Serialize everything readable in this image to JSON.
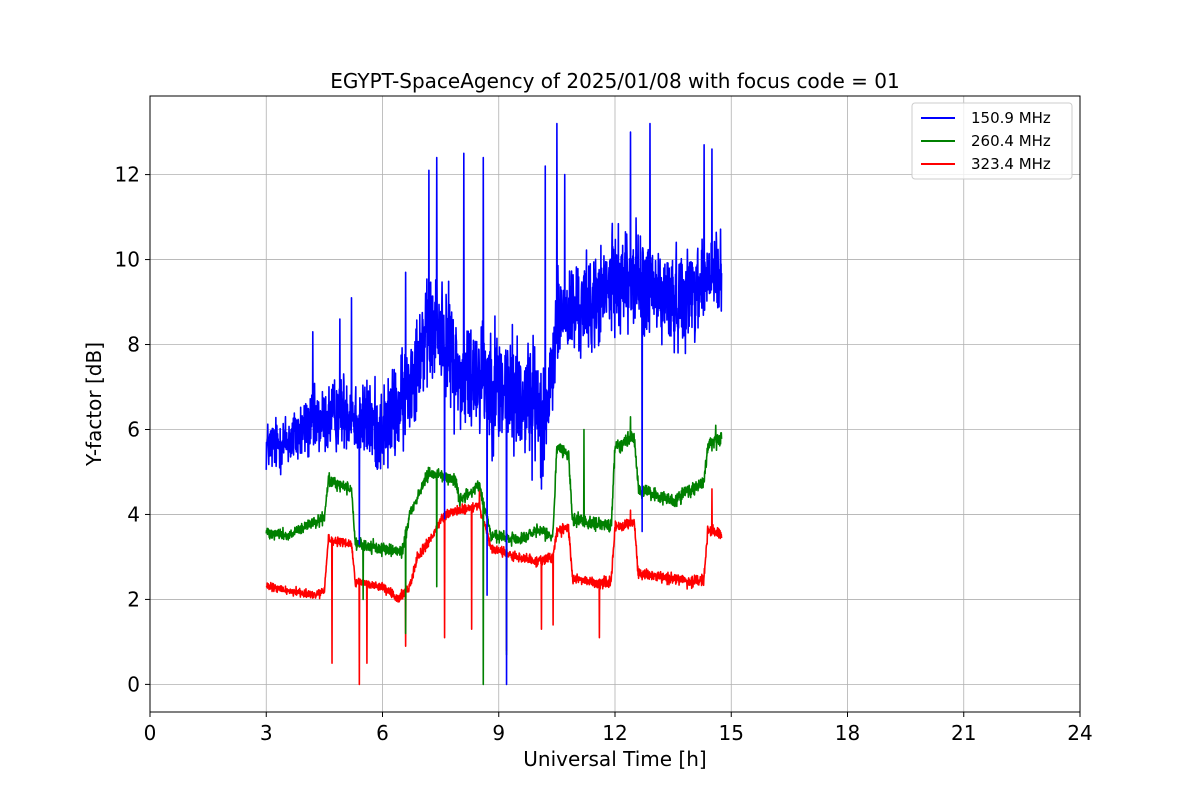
{
  "chart_data": {
    "type": "line",
    "title": "EGYPT-SpaceAgency of 2025/01/08 with focus code = 01",
    "xlabel": "Universal Time [h]",
    "ylabel": "Y-factor [dB]",
    "xlim": [
      0,
      24
    ],
    "ylim": [
      -0.65,
      13.85
    ],
    "xticks": [
      0,
      3,
      6,
      9,
      12,
      15,
      18,
      21,
      24
    ],
    "xtick_labels": [
      "0",
      "3",
      "6",
      "9",
      "12",
      "15",
      "18",
      "21",
      "24"
    ],
    "yticks": [
      0,
      2,
      4,
      6,
      8,
      10,
      12
    ],
    "ytick_labels": [
      "0",
      "2",
      "4",
      "6",
      "8",
      "10",
      "12"
    ],
    "grid": true,
    "legend_position": "top-right",
    "series": [
      {
        "name": "150.9 MHz",
        "color": "#0000ff",
        "base": [
          [
            3.0,
            5.6
          ],
          [
            3.5,
            5.7
          ],
          [
            4.0,
            6.0
          ],
          [
            4.5,
            6.2
          ],
          [
            5.0,
            6.5
          ],
          [
            5.5,
            6.2
          ],
          [
            6.0,
            6.0
          ],
          [
            6.5,
            6.6
          ],
          [
            7.0,
            8.0
          ],
          [
            7.5,
            8.4
          ],
          [
            8.0,
            7.2
          ],
          [
            8.5,
            7.4
          ],
          [
            9.0,
            7.0
          ],
          [
            9.5,
            6.8
          ],
          [
            10.0,
            6.6
          ],
          [
            10.3,
            6.5
          ],
          [
            10.5,
            8.6
          ],
          [
            11.0,
            8.8
          ],
          [
            11.5,
            9.0
          ],
          [
            12.0,
            9.5
          ],
          [
            12.5,
            9.6
          ],
          [
            13.0,
            9.2
          ],
          [
            13.5,
            9.0
          ],
          [
            14.0,
            9.3
          ],
          [
            14.5,
            9.6
          ],
          [
            14.75,
            9.5
          ]
        ],
        "amp": [
          [
            3.0,
            0.9
          ],
          [
            5.0,
            1.3
          ],
          [
            7.0,
            1.8
          ],
          [
            9.0,
            2.2
          ],
          [
            10.3,
            2.0
          ],
          [
            10.5,
            1.6
          ],
          [
            12.5,
            1.7
          ],
          [
            14.75,
            1.6
          ]
        ],
        "spikes": [
          [
            4.2,
            8.3
          ],
          [
            4.9,
            8.6
          ],
          [
            5.2,
            9.1
          ],
          [
            6.6,
            9.7
          ],
          [
            7.2,
            12.1
          ],
          [
            7.4,
            12.4
          ],
          [
            8.1,
            12.5
          ],
          [
            8.6,
            12.4
          ],
          [
            10.2,
            12.2
          ],
          [
            10.5,
            13.2
          ],
          [
            10.7,
            12.0
          ],
          [
            12.4,
            13.0
          ],
          [
            12.9,
            13.2
          ],
          [
            14.3,
            12.7
          ],
          [
            14.5,
            12.6
          ],
          [
            5.4,
            3.3
          ],
          [
            7.6,
            3.9
          ],
          [
            9.2,
            0.0
          ],
          [
            8.7,
            2.1
          ],
          [
            10.1,
            4.6
          ],
          [
            12.7,
            3.6
          ]
        ]
      },
      {
        "name": "260.4 MHz",
        "color": "#008000",
        "base": [
          [
            3.0,
            3.6
          ],
          [
            3.6,
            3.5
          ],
          [
            4.2,
            3.8
          ],
          [
            4.5,
            3.9
          ],
          [
            4.6,
            4.8
          ],
          [
            5.2,
            4.6
          ],
          [
            5.3,
            3.3
          ],
          [
            6.0,
            3.2
          ],
          [
            6.5,
            3.1
          ],
          [
            6.7,
            4.0
          ],
          [
            7.0,
            4.6
          ],
          [
            7.2,
            5.0
          ],
          [
            7.9,
            4.8
          ],
          [
            8.0,
            4.3
          ],
          [
            8.5,
            4.7
          ],
          [
            8.8,
            3.5
          ],
          [
            9.5,
            3.4
          ],
          [
            10.0,
            3.6
          ],
          [
            10.4,
            3.5
          ],
          [
            10.5,
            5.6
          ],
          [
            10.8,
            5.4
          ],
          [
            10.9,
            3.9
          ],
          [
            11.5,
            3.8
          ],
          [
            11.9,
            3.7
          ],
          [
            12.0,
            5.6
          ],
          [
            12.5,
            5.8
          ],
          [
            12.6,
            4.6
          ],
          [
            13.5,
            4.3
          ],
          [
            14.0,
            4.6
          ],
          [
            14.3,
            4.8
          ],
          [
            14.4,
            5.6
          ],
          [
            14.75,
            5.8
          ]
        ],
        "amp": [
          [
            3.0,
            0.2
          ],
          [
            14.75,
            0.25
          ]
        ],
        "spikes": [
          [
            8.6,
            0.0
          ],
          [
            9.2,
            0.7
          ],
          [
            6.6,
            1.2
          ],
          [
            5.5,
            2.0
          ],
          [
            7.4,
            2.3
          ],
          [
            11.2,
            6.0
          ],
          [
            12.4,
            6.3
          ],
          [
            14.6,
            6.1
          ]
        ]
      },
      {
        "name": "323.4 MHz",
        "color": "#ff0000",
        "base": [
          [
            3.0,
            2.3
          ],
          [
            3.6,
            2.2
          ],
          [
            4.3,
            2.1
          ],
          [
            4.5,
            2.2
          ],
          [
            4.6,
            3.4
          ],
          [
            5.2,
            3.3
          ],
          [
            5.3,
            2.4
          ],
          [
            6.0,
            2.3
          ],
          [
            6.4,
            2.0
          ],
          [
            6.7,
            2.3
          ],
          [
            6.9,
            3.0
          ],
          [
            7.3,
            3.5
          ],
          [
            7.6,
            4.0
          ],
          [
            8.0,
            4.1
          ],
          [
            8.5,
            4.2
          ],
          [
            8.8,
            3.2
          ],
          [
            9.5,
            3.0
          ],
          [
            10.0,
            2.9
          ],
          [
            10.4,
            3.0
          ],
          [
            10.5,
            3.6
          ],
          [
            10.8,
            3.7
          ],
          [
            10.9,
            2.5
          ],
          [
            11.5,
            2.4
          ],
          [
            11.9,
            2.4
          ],
          [
            12.0,
            3.7
          ],
          [
            12.5,
            3.8
          ],
          [
            12.6,
            2.6
          ],
          [
            13.5,
            2.5
          ],
          [
            14.0,
            2.4
          ],
          [
            14.3,
            2.5
          ],
          [
            14.4,
            3.7
          ],
          [
            14.75,
            3.5
          ]
        ],
        "amp": [
          [
            3.0,
            0.15
          ],
          [
            14.75,
            0.2
          ]
        ],
        "spikes": [
          [
            4.7,
            0.5
          ],
          [
            5.4,
            0.0
          ],
          [
            5.6,
            0.5
          ],
          [
            6.6,
            0.9
          ],
          [
            7.6,
            1.1
          ],
          [
            8.3,
            1.3
          ],
          [
            9.2,
            0.8
          ],
          [
            10.1,
            1.3
          ],
          [
            10.4,
            1.4
          ],
          [
            11.6,
            1.1
          ],
          [
            8.5,
            4.7
          ],
          [
            14.5,
            4.6
          ],
          [
            12.4,
            4.1
          ]
        ]
      }
    ]
  }
}
